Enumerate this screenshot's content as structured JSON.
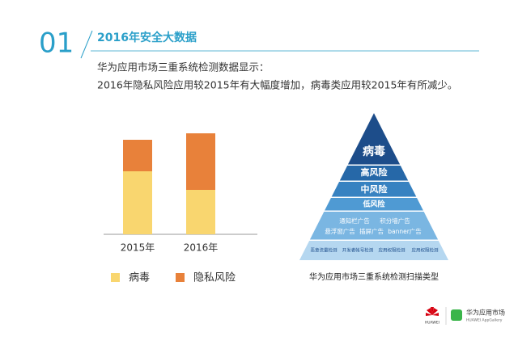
{
  "header": {
    "number": "01",
    "title": "2016年安全大数据"
  },
  "intro": [
    "华为应用市场三重系统检测数据显示：",
    "2016年隐私风险应用较2015年有大幅度增加，病毒类应用较2015年有所减少。"
  ],
  "chart_data": {
    "type": "bar",
    "stacked": true,
    "categories": [
      "2015年",
      "2016年"
    ],
    "series": [
      {
        "name": "病毒",
        "color": "#f9d66f",
        "values": [
          78,
          55
        ]
      },
      {
        "name": "隐私风险",
        "color": "#e8813a",
        "values": [
          39,
          70
        ]
      }
    ]
  },
  "pyramid": {
    "layers": [
      "病毒",
      "高风险",
      "中风险",
      "低风险"
    ],
    "ads": [
      "通知栏广告",
      "积分墙广告",
      "悬浮窗广告",
      "插屏广告",
      "banner广告"
    ],
    "checks": [
      "恶意流量检测",
      "开发者帐号检测",
      "应用权限检测",
      "应用权限检测"
    ],
    "caption": "华为应用市场三重系统检测扫描类型"
  },
  "footer": {
    "brand": "HUAWEI",
    "app": "华为应用市场",
    "app_en": "HUAWEI AppGallery"
  }
}
